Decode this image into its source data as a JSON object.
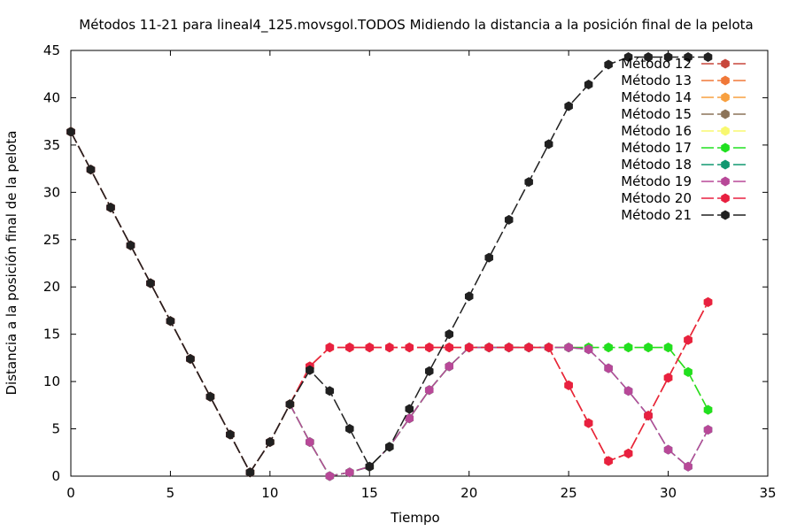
{
  "chart_data": {
    "type": "line",
    "title": "Métodos 11-21 para lineal4_125.movsgol.TODOS Midiendo la distancia a la posición final de la pelota",
    "xlabel": "Tiempo",
    "ylabel": "Distancia a la posición final de la pelota",
    "xlim": [
      0,
      35
    ],
    "ylim": [
      0,
      45
    ],
    "xticks": [
      0,
      5,
      10,
      15,
      20,
      25,
      30,
      35
    ],
    "yticks": [
      0,
      5,
      10,
      15,
      20,
      25,
      30,
      35,
      40,
      45
    ],
    "grid": false,
    "legend_position": "top-right",
    "series": [
      {
        "name": "Método 12",
        "color": "#c8473c",
        "x": [
          0,
          1,
          2,
          3,
          4,
          5,
          6,
          7,
          8,
          9,
          10,
          11,
          12,
          13,
          14,
          15,
          16,
          17,
          18,
          19,
          20,
          21,
          22,
          23,
          24,
          25,
          26,
          27,
          28,
          29,
          30,
          31,
          32
        ],
        "y": [
          36.4,
          32.4,
          28.4,
          24.4,
          20.4,
          16.4,
          12.4,
          8.4,
          4.4,
          0.4,
          3.6,
          7.6,
          11.6,
          13.6,
          13.6,
          13.6,
          13.6,
          13.6,
          13.6,
          13.6,
          13.6,
          13.6,
          13.6,
          13.6,
          13.6,
          9.6,
          5.6,
          1.6,
          2.4,
          6.4,
          10.4,
          14.4,
          18.4
        ]
      },
      {
        "name": "Método 13",
        "color": "#f07838",
        "x": [
          0,
          1,
          2,
          3,
          4,
          5,
          6,
          7,
          8,
          9,
          10,
          11,
          12,
          13,
          14,
          15,
          16,
          17,
          18,
          19,
          20,
          21,
          22,
          23,
          24,
          25,
          26,
          27,
          28,
          29,
          30,
          31,
          32
        ],
        "y": [
          36.4,
          32.4,
          28.4,
          24.4,
          20.4,
          16.4,
          12.4,
          8.4,
          4.4,
          0.4,
          3.6,
          7.6,
          11.6,
          13.6,
          13.6,
          13.6,
          13.6,
          13.6,
          13.6,
          13.6,
          13.6,
          13.6,
          13.6,
          13.6,
          13.6,
          9.6,
          5.6,
          1.6,
          2.4,
          6.4,
          10.4,
          14.4,
          18.4
        ]
      },
      {
        "name": "Método 14",
        "color": "#f8a040",
        "x": [
          0,
          1,
          2,
          3,
          4,
          5,
          6,
          7,
          8,
          9,
          10,
          11,
          12,
          13,
          14,
          15,
          16,
          17,
          18,
          19,
          20,
          21,
          22,
          23,
          24,
          25,
          26,
          27,
          28,
          29,
          30,
          31,
          32
        ],
        "y": [
          36.4,
          32.4,
          28.4,
          24.4,
          20.4,
          16.4,
          12.4,
          8.4,
          4.4,
          0.4,
          3.6,
          7.6,
          11.6,
          13.6,
          13.6,
          13.6,
          13.6,
          13.6,
          13.6,
          13.6,
          13.6,
          13.6,
          13.6,
          13.6,
          13.6,
          9.6,
          5.6,
          1.6,
          2.4,
          6.4,
          10.4,
          14.4,
          18.4
        ]
      },
      {
        "name": "Método 15",
        "color": "#8c7358",
        "x": [
          0,
          1,
          2,
          3,
          4,
          5,
          6,
          7,
          8,
          9,
          10,
          11,
          12,
          13,
          14,
          15,
          16,
          17,
          18,
          19,
          20,
          21,
          22,
          23,
          24,
          25,
          26,
          27,
          28,
          29,
          30,
          31,
          32
        ],
        "y": [
          36.4,
          32.4,
          28.4,
          24.4,
          20.4,
          16.4,
          12.4,
          8.4,
          4.4,
          0.4,
          3.6,
          7.6,
          3.6,
          0.0,
          0.4,
          1.0,
          3.1,
          6.1,
          9.1,
          11.6,
          13.6,
          13.6,
          13.6,
          13.6,
          13.6,
          13.6,
          13.6,
          13.6,
          13.6,
          13.6,
          13.6,
          11.0,
          7.0
        ]
      },
      {
        "name": "Método 16",
        "color": "#f8f870",
        "x": [
          0,
          1,
          2,
          3,
          4,
          5,
          6,
          7,
          8,
          9,
          10,
          11,
          12,
          13,
          14,
          15,
          16,
          17,
          18,
          19,
          20,
          21,
          22,
          23,
          24,
          25,
          26,
          27,
          28,
          29,
          30,
          31,
          32
        ],
        "y": [
          36.4,
          32.4,
          28.4,
          24.4,
          20.4,
          16.4,
          12.4,
          8.4,
          4.4,
          0.4,
          3.6,
          7.6,
          3.6,
          0.0,
          0.4,
          1.0,
          3.1,
          6.1,
          9.1,
          11.6,
          13.6,
          13.6,
          13.6,
          13.6,
          13.6,
          13.6,
          13.6,
          13.6,
          13.6,
          13.6,
          13.6,
          11.0,
          7.0
        ]
      },
      {
        "name": "Método 17",
        "color": "#20e020",
        "x": [
          0,
          1,
          2,
          3,
          4,
          5,
          6,
          7,
          8,
          9,
          10,
          11,
          12,
          13,
          14,
          15,
          16,
          17,
          18,
          19,
          20,
          21,
          22,
          23,
          24,
          25,
          26,
          27,
          28,
          29,
          30,
          31,
          32
        ],
        "y": [
          36.4,
          32.4,
          28.4,
          24.4,
          20.4,
          16.4,
          12.4,
          8.4,
          4.4,
          0.4,
          3.6,
          7.6,
          3.6,
          0.0,
          0.4,
          1.0,
          3.1,
          6.1,
          9.1,
          11.6,
          13.6,
          13.6,
          13.6,
          13.6,
          13.6,
          13.6,
          13.6,
          13.6,
          13.6,
          13.6,
          13.6,
          11.0,
          7.0
        ]
      },
      {
        "name": "Método 18",
        "color": "#109870",
        "x": [
          0,
          1,
          2,
          3,
          4,
          5,
          6,
          7,
          8,
          9,
          10,
          11,
          12,
          13,
          14,
          15,
          16,
          17,
          18,
          19,
          20,
          21,
          22,
          23,
          24,
          25,
          26,
          27,
          28,
          29,
          30,
          31,
          32
        ],
        "y": [
          36.4,
          32.4,
          28.4,
          24.4,
          20.4,
          16.4,
          12.4,
          8.4,
          4.4,
          0.4,
          3.6,
          7.6,
          3.6,
          0.0,
          0.4,
          1.0,
          3.1,
          6.1,
          9.1,
          11.6,
          13.6,
          13.6,
          13.6,
          13.6,
          13.6,
          13.6,
          13.4,
          11.4,
          9.0,
          6.4,
          2.8,
          1.0,
          4.9
        ]
      },
      {
        "name": "Método 19",
        "color": "#b84898",
        "x": [
          0,
          1,
          2,
          3,
          4,
          5,
          6,
          7,
          8,
          9,
          10,
          11,
          12,
          13,
          14,
          15,
          16,
          17,
          18,
          19,
          20,
          21,
          22,
          23,
          24,
          25,
          26,
          27,
          28,
          29,
          30,
          31,
          32
        ],
        "y": [
          36.4,
          32.4,
          28.4,
          24.4,
          20.4,
          16.4,
          12.4,
          8.4,
          4.4,
          0.4,
          3.6,
          7.6,
          3.6,
          0.0,
          0.4,
          1.0,
          3.1,
          6.1,
          9.1,
          11.6,
          13.6,
          13.6,
          13.6,
          13.6,
          13.6,
          13.6,
          13.4,
          11.4,
          9.0,
          6.4,
          2.8,
          1.0,
          4.9
        ]
      },
      {
        "name": "Método 20",
        "color": "#e82040",
        "x": [
          0,
          1,
          2,
          3,
          4,
          5,
          6,
          7,
          8,
          9,
          10,
          11,
          12,
          13,
          14,
          15,
          16,
          17,
          18,
          19,
          20,
          21,
          22,
          23,
          24,
          25,
          26,
          27,
          28,
          29,
          30,
          31,
          32
        ],
        "y": [
          36.4,
          32.4,
          28.4,
          24.4,
          20.4,
          16.4,
          12.4,
          8.4,
          4.4,
          0.4,
          3.6,
          7.6,
          11.6,
          13.6,
          13.6,
          13.6,
          13.6,
          13.6,
          13.6,
          13.6,
          13.6,
          13.6,
          13.6,
          13.6,
          13.6,
          9.6,
          5.6,
          1.6,
          2.4,
          6.4,
          10.4,
          14.4,
          18.4
        ]
      },
      {
        "name": "Método 21",
        "color": "#202020",
        "x": [
          0,
          1,
          2,
          3,
          4,
          5,
          6,
          7,
          8,
          9,
          10,
          11,
          12,
          13,
          14,
          15,
          16,
          17,
          18,
          19,
          20,
          21,
          22,
          23,
          24,
          25,
          26,
          27,
          28,
          29,
          30,
          31,
          32
        ],
        "y": [
          36.4,
          32.4,
          28.4,
          24.4,
          20.4,
          16.4,
          12.4,
          8.4,
          4.4,
          0.4,
          3.6,
          7.6,
          11.2,
          9.0,
          5.0,
          1.0,
          3.1,
          7.1,
          11.1,
          15.0,
          19.0,
          23.1,
          27.1,
          31.1,
          35.1,
          39.1,
          41.4,
          43.5,
          44.3,
          44.3,
          44.3,
          44.3,
          44.3
        ]
      }
    ]
  }
}
